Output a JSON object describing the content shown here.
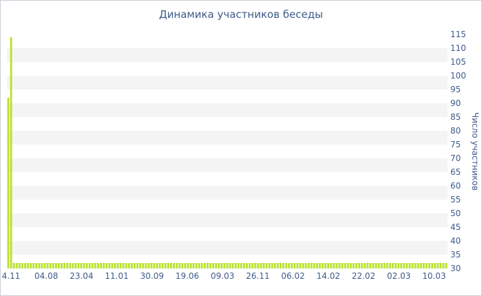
{
  "chart_data": {
    "type": "bar",
    "title": "Динамика участников беседы",
    "xlabel": "",
    "ylabel": "Число участников",
    "ylim": [
      30,
      115
    ],
    "yticks": [
      30,
      35,
      40,
      45,
      50,
      55,
      60,
      65,
      70,
      75,
      80,
      85,
      90,
      95,
      100,
      105,
      110,
      115
    ],
    "xtick_labels": [
      "4.11",
      "04.08",
      "23.04",
      "11.01",
      "30.09",
      "19.06",
      "09.03",
      "26.11",
      "06.02",
      "14.02",
      "22.02",
      "02.03",
      "10.03"
    ],
    "bar_color": "#b8e22c",
    "values": [
      92,
      114,
      32,
      32,
      32,
      32,
      32,
      32,
      32,
      32,
      32,
      32,
      32,
      32,
      32,
      32,
      32,
      32,
      32,
      32,
      32,
      32,
      32,
      32,
      32,
      32,
      32,
      32,
      32,
      32,
      32,
      32,
      32,
      32,
      32,
      32,
      32,
      32,
      32,
      32,
      32,
      32,
      32,
      32,
      32,
      32,
      32,
      32,
      32,
      32,
      32,
      32,
      32,
      32,
      32,
      32,
      32,
      32,
      32,
      32,
      32,
      32,
      32,
      32,
      32,
      32,
      32,
      32,
      32,
      32,
      32,
      32,
      32,
      32,
      32,
      32,
      32,
      32,
      32,
      32,
      32,
      32,
      32,
      32,
      32,
      32,
      32,
      32,
      32,
      32,
      32,
      32,
      32,
      32,
      32,
      32,
      32,
      32,
      32,
      32,
      32,
      32,
      32,
      32,
      32,
      32,
      32,
      32,
      32,
      32,
      32,
      32,
      32,
      32,
      32,
      32,
      32,
      32,
      32,
      32,
      32,
      32,
      32,
      32,
      32,
      32,
      32,
      32,
      32,
      32,
      32,
      32,
      32,
      32,
      32,
      32,
      32,
      32,
      32,
      32,
      32,
      32,
      32,
      32,
      32,
      32,
      32,
      32,
      32,
      32,
      32,
      32,
      32,
      32,
      32,
      32,
      32
    ],
    "grid": true
  }
}
